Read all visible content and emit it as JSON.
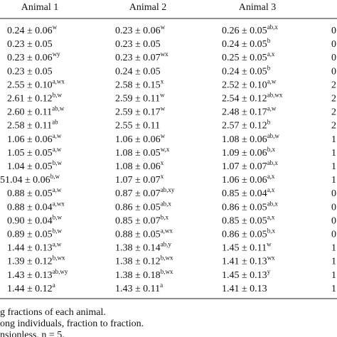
{
  "table": {
    "header": [
      "Animal 1",
      "Animal 2",
      "Animal 3"
    ],
    "rows": [
      [
        [
          "0.24 ± 0.06",
          "w"
        ],
        [
          "0.23 ± 0.06",
          "w"
        ],
        [
          "0.26 ± 0.05",
          "ab,x"
        ],
        [
          "0"
        ]
      ],
      [
        [
          "0.23 ± 0.05"
        ],
        [
          "0.23 ± 0.05"
        ],
        [
          "0.24 ± 0.05",
          "b"
        ],
        [
          "0"
        ]
      ],
      [
        [
          "0.23 ± 0.06",
          "wy"
        ],
        [
          "0.23 ± 0.07",
          "wx"
        ],
        [
          "0.25 ± 0.05",
          "a,x"
        ],
        [
          "0"
        ]
      ],
      [
        [
          "0.23 ± 0.05"
        ],
        [
          "0.24 ± 0.05"
        ],
        [
          "0.24 ± 0.05",
          "b"
        ],
        [
          "0"
        ]
      ],
      [
        [
          "2.55 ± 0.10",
          "a,wx"
        ],
        [
          "2.58 ± 0.15",
          "x"
        ],
        [
          "2.52 ± 0.10",
          "a,w"
        ],
        [
          "2"
        ]
      ],
      [
        [
          "2.61 ± 0.12",
          "b,w"
        ],
        [
          "2.59 ± 0.11",
          "w"
        ],
        [
          "2.54 ± 0.12",
          "ab,wx"
        ],
        [
          "2"
        ]
      ],
      [
        [
          "2.60 ± 0.11",
          "ab,w"
        ],
        [
          "2.59 ± 0.17",
          "w"
        ],
        [
          "2.48 ± 0.17",
          "a,w"
        ],
        [
          "2"
        ]
      ],
      [
        [
          "2.58 ± 0.11",
          "ab"
        ],
        [
          "2.55 ± 0.11"
        ],
        [
          "2.57 ± 0.12",
          "b"
        ],
        [
          "2"
        ]
      ],
      [
        [
          "1.06 ± 0.06",
          "a,w"
        ],
        [
          "1.06 ± 0.06",
          "w"
        ],
        [
          "1.08 ± 0.06",
          "ab,w"
        ],
        [
          "1"
        ]
      ],
      [
        [
          "1.05 ± 0.05",
          "a,w"
        ],
        [
          "1.08 ± 0.05",
          "w,x"
        ],
        [
          "1.09 ± 0.06",
          "b,x"
        ],
        [
          "1"
        ]
      ],
      [
        [
          "1.04 ± 0.05",
          "b,w"
        ],
        [
          "1.08 ± 0.06",
          "x"
        ],
        [
          "1.07 ± 0.07",
          "ab,x"
        ],
        [
          "1"
        ]
      ],
      [
        [
          "51.04 ± 0.06",
          "b,w"
        ],
        [
          "1.07 ± 0.07",
          "x"
        ],
        [
          "1.06 ± 0.06",
          "a,x"
        ],
        [
          "1"
        ]
      ],
      [
        [
          "0.88 ± 0.05",
          "a,w"
        ],
        [
          "0.87 ± 0.07",
          "ab,xy"
        ],
        [
          "0.85 ± 0.04",
          "a,x"
        ],
        [
          "0"
        ]
      ],
      [
        [
          "0.88 ± 0.04",
          "a,wx"
        ],
        [
          "0.86 ± 0.05",
          "ab,x"
        ],
        [
          "0.86 ± 0.05",
          "ab,x"
        ],
        [
          "0"
        ]
      ],
      [
        [
          "0.90 ± 0.04",
          "b,w"
        ],
        [
          "0.85 ± 0.07",
          "b,x"
        ],
        [
          "0.85 ± 0.05",
          "a,x"
        ],
        [
          "0"
        ]
      ],
      [
        [
          "0.89 ± 0.05",
          "b,w"
        ],
        [
          "0.88 ± 0.05",
          "a,wx"
        ],
        [
          "0.86 ± 0.05",
          "b,x"
        ],
        [
          "0"
        ]
      ],
      [
        [
          "1.44 ± 0.13",
          "a,w"
        ],
        [
          "1.38 ± 0.14",
          "ab,y"
        ],
        [
          "1.45 ± 0.11",
          "w"
        ],
        [
          "1"
        ]
      ],
      [
        [
          "1.39 ± 0.12",
          "b,wx"
        ],
        [
          "1.38 ± 0.12",
          "b,wx"
        ],
        [
          "1.41 ± 0.13",
          "wx"
        ],
        [
          "1"
        ]
      ],
      [
        [
          "1.43 ± 0.13",
          "ab,wy"
        ],
        [
          "1.38 ± 0.18",
          "b,wx"
        ],
        [
          "1.45 ± 0.13",
          "y"
        ],
        [
          "1"
        ]
      ],
      [
        [
          "1.44 ± 0.12",
          "a"
        ],
        [
          "1.43 ± 0.11",
          "a"
        ],
        [
          "1.41 ± 0.13"
        ],
        [
          "1"
        ]
      ]
    ],
    "footnotes": [
      "g fractions of each animal.",
      "ong individuals, fraction to fraction.",
      "nsionless. n = 5."
    ]
  }
}
